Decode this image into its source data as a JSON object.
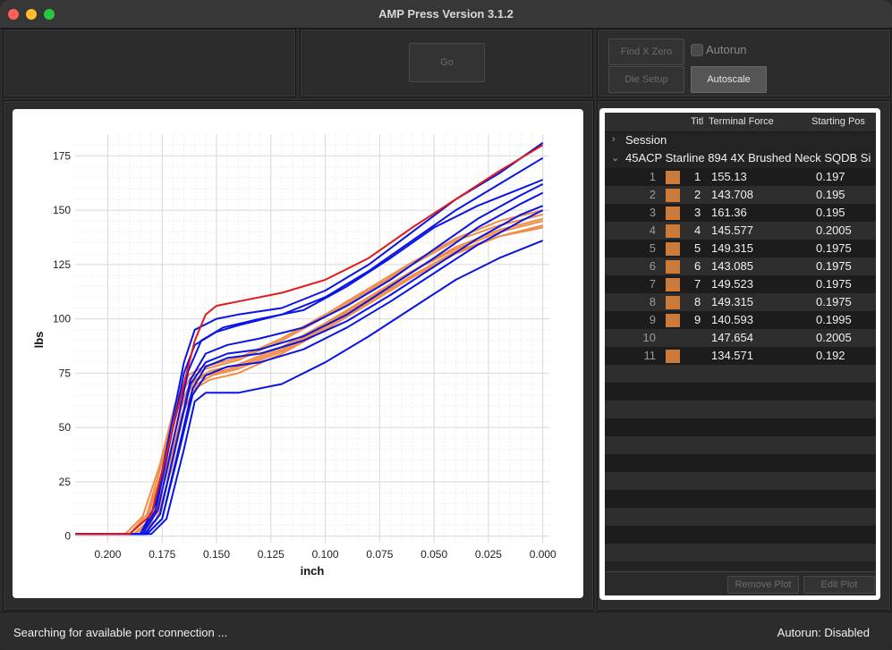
{
  "window": {
    "title": "AMP Press Version 3.1.2"
  },
  "controls": {
    "go_label": "Go",
    "find_x_zero_label": "Find X Zero",
    "die_setup_label": "Die Setup",
    "autorun_label": "Autorun",
    "autorun_checked": false,
    "autoscale_label": "Autoscale"
  },
  "table": {
    "headers": [
      "Title",
      "Terminal Force",
      "Starting Pos"
    ],
    "header_title_display": "Titl",
    "session_label": "Session",
    "group_label": "45ACP Starline 894 4X Brushed Neck SQDB Si",
    "rows": [
      {
        "index": "1",
        "title": "1",
        "force": "155.13",
        "pos": "0.197",
        "swatch": true
      },
      {
        "index": "2",
        "title": "2",
        "force": "143.708",
        "pos": "0.195",
        "swatch": true
      },
      {
        "index": "3",
        "title": "3",
        "force": "161.36",
        "pos": "0.195",
        "swatch": true
      },
      {
        "index": "4",
        "title": "4",
        "force": "145.577",
        "pos": "0.2005",
        "swatch": true
      },
      {
        "index": "5",
        "title": "5",
        "force": "149.315",
        "pos": "0.1975",
        "swatch": true
      },
      {
        "index": "6",
        "title": "6",
        "force": "143.085",
        "pos": "0.1975",
        "swatch": true
      },
      {
        "index": "7",
        "title": "7",
        "force": "149.523",
        "pos": "0.1975",
        "swatch": true
      },
      {
        "index": "8",
        "title": "8",
        "force": "149.315",
        "pos": "0.1975",
        "swatch": true
      },
      {
        "index": "9",
        "title": "9",
        "force": "140.593",
        "pos": "0.1995",
        "swatch": true
      },
      {
        "index": "10",
        "title": "",
        "force": "147.654",
        "pos": "0.2005",
        "swatch": false
      },
      {
        "index": "11",
        "title": "",
        "force": "134.571",
        "pos": "0.192",
        "swatch": true
      }
    ],
    "remove_plot_label": "Remove Plot",
    "edit_plot_label": "Edit Plot"
  },
  "status": {
    "left": "Searching for available port connection ...",
    "right": "Autorun: Disabled"
  },
  "colors": {
    "swatch": "#cc7a3a",
    "blue_series": "#0a14e6",
    "orange_series": "#f08c46",
    "red_series": "#e31a1a"
  },
  "chart_data": {
    "type": "line",
    "xlabel": "inch",
    "ylabel": "lbs",
    "xlim": [
      0.215,
      -0.003
    ],
    "ylim": [
      -3,
      185
    ],
    "x_ticks": [
      "0.200",
      "0.175",
      "0.150",
      "0.125",
      "0.100",
      "0.075",
      "0.050",
      "0.025",
      "0.000"
    ],
    "x_tick_values": [
      0.2,
      0.175,
      0.15,
      0.125,
      0.1,
      0.075,
      0.05,
      0.025,
      0.0
    ],
    "y_ticks": [
      "0",
      "25",
      "50",
      "75",
      "100",
      "125",
      "150",
      "175"
    ],
    "y_tick_values": [
      0,
      25,
      50,
      75,
      100,
      125,
      150,
      175
    ],
    "grid": true,
    "series": [
      {
        "color": "red",
        "x": [
          0.215,
          0.19,
          0.18,
          0.17,
          0.16,
          0.155,
          0.15,
          0.14,
          0.12,
          0.1,
          0.08,
          0.06,
          0.04,
          0.02,
          0.0
        ],
        "y": [
          1,
          1,
          10,
          50,
          90,
          102,
          106,
          108,
          112,
          118,
          128,
          142,
          155,
          168,
          180
        ]
      },
      {
        "color": "blue",
        "x": [
          0.215,
          0.185,
          0.178,
          0.17,
          0.165,
          0.16,
          0.15,
          0.14,
          0.12,
          0.1,
          0.08,
          0.06,
          0.04,
          0.02,
          0.0
        ],
        "y": [
          1,
          1,
          15,
          55,
          80,
          95,
          100,
          102,
          105,
          113,
          125,
          140,
          155,
          167,
          181
        ]
      },
      {
        "color": "blue",
        "x": [
          0.215,
          0.185,
          0.178,
          0.17,
          0.165,
          0.16,
          0.15,
          0.14,
          0.12,
          0.1,
          0.08,
          0.06,
          0.04,
          0.02,
          0.0
        ],
        "y": [
          1,
          1,
          12,
          50,
          75,
          88,
          94,
          97,
          102,
          110,
          122,
          136,
          150,
          162,
          174
        ]
      },
      {
        "color": "blue",
        "x": [
          0.215,
          0.183,
          0.176,
          0.168,
          0.162,
          0.155,
          0.145,
          0.13,
          0.11,
          0.09,
          0.07,
          0.05,
          0.03,
          0.01,
          0.0
        ],
        "y": [
          1,
          1,
          10,
          45,
          72,
          84,
          88,
          91,
          96,
          106,
          118,
          132,
          146,
          157,
          162
        ]
      },
      {
        "color": "blue",
        "x": [
          0.215,
          0.183,
          0.176,
          0.168,
          0.162,
          0.155,
          0.145,
          0.13,
          0.11,
          0.09,
          0.07,
          0.05,
          0.03,
          0.01,
          0.0
        ],
        "y": [
          1,
          1,
          10,
          45,
          70,
          80,
          84,
          86,
          92,
          102,
          115,
          128,
          142,
          153,
          158
        ]
      },
      {
        "color": "blue",
        "x": [
          0.215,
          0.182,
          0.175,
          0.167,
          0.161,
          0.155,
          0.145,
          0.13,
          0.11,
          0.09,
          0.07,
          0.05,
          0.03,
          0.01,
          0.0
        ],
        "y": [
          1,
          1,
          8,
          42,
          68,
          78,
          82,
          84,
          90,
          99,
          111,
          124,
          137,
          148,
          152
        ]
      },
      {
        "color": "blue",
        "x": [
          0.215,
          0.182,
          0.175,
          0.167,
          0.161,
          0.155,
          0.145,
          0.13,
          0.11,
          0.09,
          0.07,
          0.05,
          0.03,
          0.01,
          0.0
        ],
        "y": [
          1,
          1,
          8,
          40,
          65,
          74,
          78,
          80,
          86,
          96,
          108,
          121,
          134,
          145,
          150
        ]
      },
      {
        "color": "blue",
        "x": [
          0.215,
          0.18,
          0.173,
          0.165,
          0.16,
          0.155,
          0.14,
          0.12,
          0.1,
          0.08,
          0.06,
          0.04,
          0.02,
          0.0
        ],
        "y": [
          1,
          1,
          8,
          40,
          62,
          66,
          66,
          70,
          80,
          92,
          105,
          118,
          128,
          136
        ]
      },
      {
        "color": "blue",
        "x": [
          0.215,
          0.184,
          0.177,
          0.169,
          0.163,
          0.157,
          0.147,
          0.13,
          0.11,
          0.09,
          0.07,
          0.05,
          0.03,
          0.01,
          0.0
        ],
        "y": [
          1,
          1,
          12,
          48,
          76,
          90,
          96,
          100,
          104,
          115,
          128,
          142,
          152,
          160,
          164
        ]
      },
      {
        "color": "orange",
        "x": [
          0.215,
          0.19,
          0.182,
          0.175,
          0.168,
          0.162,
          0.155,
          0.14,
          0.12,
          0.1,
          0.08,
          0.06,
          0.04,
          0.02,
          0.0
        ],
        "y": [
          1,
          1,
          8,
          30,
          58,
          70,
          74,
          78,
          86,
          97,
          109,
          122,
          132,
          140,
          145
        ]
      },
      {
        "color": "orange",
        "x": [
          0.215,
          0.19,
          0.182,
          0.175,
          0.168,
          0.162,
          0.155,
          0.14,
          0.12,
          0.1,
          0.08,
          0.06,
          0.04,
          0.02,
          0.0
        ],
        "y": [
          1,
          1,
          10,
          34,
          62,
          73,
          77,
          81,
          90,
          101,
          113,
          125,
          136,
          143,
          148
        ]
      },
      {
        "color": "orange",
        "x": [
          0.215,
          0.188,
          0.18,
          0.173,
          0.166,
          0.16,
          0.153,
          0.14,
          0.12,
          0.1,
          0.08,
          0.06,
          0.04,
          0.02,
          0.0
        ],
        "y": [
          1,
          1,
          8,
          32,
          60,
          72,
          76,
          79,
          87,
          98,
          110,
          122,
          133,
          141,
          146
        ]
      },
      {
        "color": "orange",
        "x": [
          0.215,
          0.188,
          0.18,
          0.173,
          0.166,
          0.16,
          0.153,
          0.14,
          0.12,
          0.1,
          0.08,
          0.06,
          0.04,
          0.02,
          0.0
        ],
        "y": [
          1,
          1,
          6,
          28,
          56,
          68,
          72,
          75,
          84,
          95,
          107,
          119,
          130,
          138,
          143
        ]
      },
      {
        "color": "orange",
        "x": [
          0.215,
          0.192,
          0.184,
          0.176,
          0.169,
          0.163,
          0.156,
          0.14,
          0.12,
          0.1,
          0.08,
          0.06,
          0.04,
          0.02,
          0.0
        ],
        "y": [
          1,
          1,
          9,
          33,
          61,
          74,
          78,
          82,
          91,
          102,
          114,
          126,
          137,
          145,
          150
        ]
      },
      {
        "color": "orange",
        "x": [
          0.215,
          0.186,
          0.178,
          0.171,
          0.165,
          0.159,
          0.152,
          0.14,
          0.12,
          0.1,
          0.08,
          0.06,
          0.04,
          0.02,
          0.0
        ],
        "y": [
          1,
          1,
          7,
          30,
          58,
          70,
          74,
          77,
          85,
          96,
          108,
          120,
          131,
          138,
          142
        ]
      }
    ]
  }
}
